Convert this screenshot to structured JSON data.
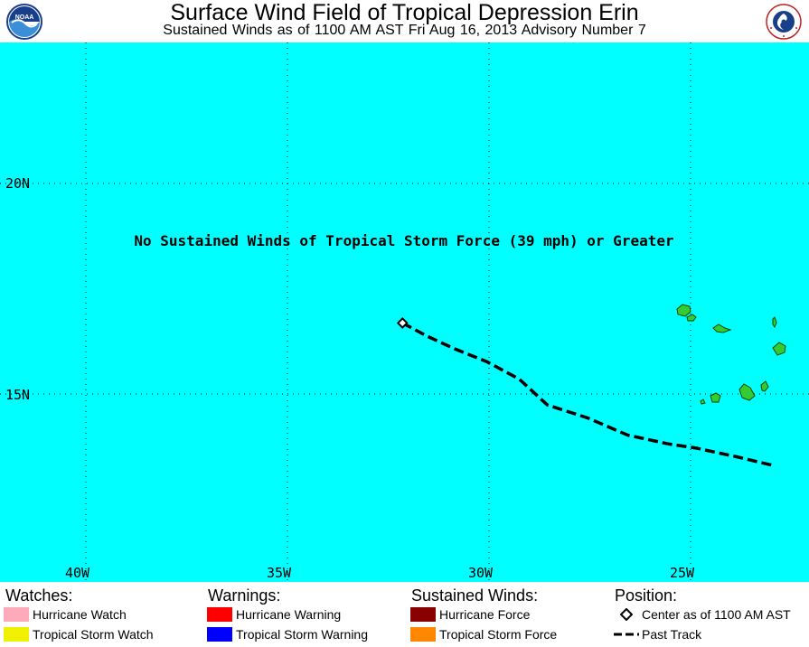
{
  "header": {
    "title": "Surface Wind Field of Tropical Depression Erin",
    "subtitle": "Sustained Winds as of 1100 AM AST Fri Aug 16, 2013    Advisory Number 7",
    "left_logo": "noaa-logo",
    "right_logo": "national-weather-service-logo"
  },
  "map": {
    "ocean_color": "#00ffff",
    "land_color": "#33cc33",
    "message": "No Sustained Winds of Tropical Storm Force (39 mph) or Greater",
    "lon_labels": [
      "40W",
      "35W",
      "30W",
      "25W"
    ],
    "lat_labels": [
      "20N",
      "15N"
    ],
    "lon_range": [
      -42.1,
      -22.0
    ],
    "lat_range": [
      11.0,
      23.5
    ],
    "center": {
      "lon": -32.1,
      "lat": 17.0
    },
    "past_track": [
      [
        -32.1,
        17.0
      ],
      [
        -31.5,
        16.7
      ],
      [
        -30.8,
        16.4
      ],
      [
        -30.0,
        16.1
      ],
      [
        -29.2,
        15.7
      ],
      [
        -28.5,
        15.1
      ],
      [
        -27.5,
        14.8
      ],
      [
        -26.5,
        14.4
      ],
      [
        -25.5,
        14.2
      ],
      [
        -24.8,
        14.1
      ],
      [
        -23.8,
        13.9
      ],
      [
        -22.9,
        13.7
      ]
    ]
  },
  "legend": {
    "watches": {
      "heading": "Watches:",
      "items": [
        {
          "label": "Hurricane Watch",
          "color": "#ffaabb"
        },
        {
          "label": "Tropical Storm Watch",
          "color": "#f0f000"
        }
      ]
    },
    "warnings": {
      "heading": "Warnings:",
      "items": [
        {
          "label": "Hurricane Warning",
          "color": "#ff0000"
        },
        {
          "label": "Tropical Storm Warning",
          "color": "#0000ff"
        }
      ]
    },
    "winds": {
      "heading": "Sustained Winds:",
      "items": [
        {
          "label": "Hurricane Force",
          "color": "#880000"
        },
        {
          "label": "Tropical Storm Force",
          "color": "#ff8800"
        }
      ]
    },
    "position": {
      "heading": "Position:",
      "items": [
        {
          "label": "Center as of 1100 AM AST",
          "icon": "diamond-icon"
        },
        {
          "label": "Past Track",
          "icon": "dashed-line-icon"
        }
      ]
    }
  }
}
